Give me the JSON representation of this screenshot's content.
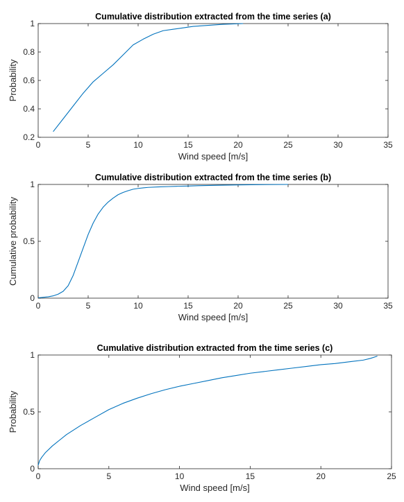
{
  "chart_data": [
    {
      "type": "line",
      "title": "Cumulative distribution extracted from the time series (a)",
      "xlabel": "Wind speed [m/s]",
      "ylabel": "Probability",
      "xlim": [
        0,
        35
      ],
      "ylim": [
        0.2,
        1
      ],
      "xticks": [
        0,
        5,
        10,
        15,
        20,
        25,
        30,
        35
      ],
      "yticks": [
        0.2,
        0.4,
        0.6,
        0.8,
        1
      ],
      "ytick_labels": [
        "0.2",
        "0.4",
        "0.6",
        "0.8",
        "1"
      ],
      "grid": false,
      "color": "#0072BD",
      "series": [
        {
          "x": [
            1.5,
            2.5,
            3.5,
            4.5,
            5.5,
            6.5,
            7.5,
            8.5,
            9.5,
            10.5,
            11.5,
            12.5,
            13.5,
            14.5,
            15.5,
            16.5,
            17.5,
            18.5,
            20.5
          ],
          "y": [
            0.24,
            0.33,
            0.42,
            0.51,
            0.59,
            0.65,
            0.71,
            0.78,
            0.85,
            0.89,
            0.925,
            0.95,
            0.96,
            0.97,
            0.98,
            0.985,
            0.99,
            0.995,
            1.0
          ]
        }
      ]
    },
    {
      "type": "line",
      "title": "Cumulative distribution extracted from the time series (b)",
      "xlabel": "Wind speed [m/s]",
      "ylabel": "Cumulative probability",
      "xlim": [
        0,
        35
      ],
      "ylim": [
        0,
        1
      ],
      "xticks": [
        0,
        5,
        10,
        15,
        20,
        25,
        30,
        35
      ],
      "yticks": [
        0,
        0.5,
        1
      ],
      "ytick_labels": [
        "0",
        "0.5",
        "1"
      ],
      "grid": false,
      "color": "#0072BD",
      "series": [
        {
          "x": [
            0,
            0.5,
            1,
            1.5,
            2,
            2.5,
            3,
            3.5,
            4,
            4.5,
            5,
            5.5,
            6,
            6.5,
            7,
            7.5,
            8,
            8.5,
            9,
            9.5,
            10,
            10.5,
            11,
            12,
            13,
            14,
            15,
            16,
            18,
            20,
            22,
            25
          ],
          "y": [
            0.003,
            0.007,
            0.012,
            0.02,
            0.035,
            0.06,
            0.11,
            0.2,
            0.32,
            0.44,
            0.56,
            0.66,
            0.74,
            0.8,
            0.845,
            0.88,
            0.91,
            0.93,
            0.945,
            0.958,
            0.965,
            0.97,
            0.974,
            0.978,
            0.981,
            0.984,
            0.986,
            0.989,
            0.993,
            0.996,
            0.998,
            1.0
          ]
        }
      ]
    },
    {
      "type": "line",
      "title": "Cumulative distribution extracted from the time series (c)",
      "xlabel": "Wind speed [m/s]",
      "ylabel": "Probability",
      "xlim": [
        0,
        25
      ],
      "ylim": [
        0,
        1
      ],
      "xticks": [
        0,
        5,
        10,
        15,
        20,
        25
      ],
      "yticks": [
        0,
        0.5,
        1
      ],
      "ytick_labels": [
        "0",
        "0.5",
        "1"
      ],
      "grid": false,
      "color": "#0072BD",
      "series": [
        {
          "x": [
            0,
            0.1,
            0.25,
            0.5,
            1,
            1.5,
            2,
            3,
            4,
            5,
            6,
            7,
            8,
            9,
            10,
            11,
            12,
            13,
            14,
            15,
            16,
            17,
            18,
            19,
            20,
            21,
            22,
            23,
            23.5,
            24
          ],
          "y": [
            0.03,
            0.07,
            0.1,
            0.14,
            0.2,
            0.25,
            0.3,
            0.38,
            0.45,
            0.52,
            0.575,
            0.62,
            0.66,
            0.695,
            0.725,
            0.75,
            0.775,
            0.8,
            0.82,
            0.84,
            0.855,
            0.87,
            0.885,
            0.9,
            0.915,
            0.925,
            0.94,
            0.955,
            0.97,
            0.99
          ]
        }
      ]
    }
  ]
}
